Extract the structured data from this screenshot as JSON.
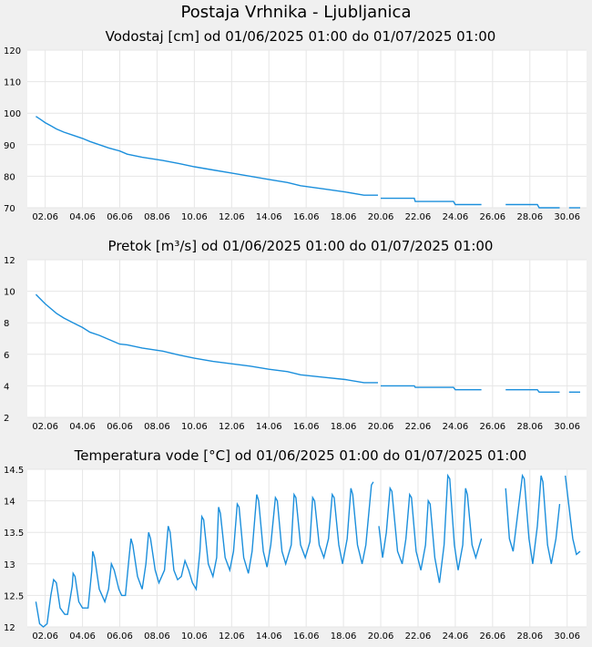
{
  "page": {
    "title": "Postaja Vrhnika - Ljubljanica"
  },
  "chart_data": [
    {
      "type": "line",
      "title": "Vodostaj [cm] od 01/06/2025 01:00 do 01/07/2025 01:00",
      "ylim": [
        70,
        120
      ],
      "yticks": [
        "120",
        "110",
        "100",
        "90",
        "80",
        "70"
      ],
      "xlim": [
        1.04,
        31.04
      ],
      "xticks": [
        "02.06",
        "04.06",
        "06.06",
        "08.06",
        "10.06",
        "12.06",
        "14.06",
        "16.06",
        "18.06",
        "20.06",
        "22.06",
        "24.06",
        "26.06",
        "28.06",
        "30.06"
      ],
      "grid": true,
      "color": "#1b8fdc",
      "series": [
        {
          "points": [
            [
              1.5,
              99
            ],
            [
              1.75,
              98
            ],
            [
              2.0,
              97
            ],
            [
              2.3,
              96
            ],
            [
              2.6,
              95
            ],
            [
              3.0,
              94
            ],
            [
              3.5,
              93
            ],
            [
              4.0,
              92
            ],
            [
              4.4,
              91
            ],
            [
              4.9,
              90
            ],
            [
              5.4,
              89
            ],
            [
              6.0,
              88
            ],
            [
              6.4,
              87
            ],
            [
              7.2,
              86
            ],
            [
              8.3,
              85
            ],
            [
              9.2,
              84
            ],
            [
              10.0,
              83
            ],
            [
              11.0,
              82
            ],
            [
              12.0,
              81
            ],
            [
              13.0,
              80
            ],
            [
              14.0,
              79
            ],
            [
              15.0,
              78
            ],
            [
              15.7,
              77
            ],
            [
              16.9,
              76
            ],
            [
              18.1,
              75
            ],
            [
              19.1,
              74
            ],
            [
              19.85,
              74
            ]
          ]
        },
        {
          "points": [
            [
              20.0,
              73
            ],
            [
              21.8,
              73
            ],
            [
              21.85,
              72
            ],
            [
              23.9,
              72
            ],
            [
              24.0,
              71
            ],
            [
              25.4,
              71
            ]
          ]
        },
        {
          "points": [
            [
              26.7,
              71
            ],
            [
              28.4,
              71
            ],
            [
              28.5,
              70
            ],
            [
              29.6,
              70
            ]
          ]
        },
        {
          "points": [
            [
              30.1,
              70
            ],
            [
              30.7,
              70
            ]
          ]
        }
      ]
    },
    {
      "type": "line",
      "title": "Pretok [m³/s] od 01/06/2025 01:00 do 01/07/2025 01:00",
      "ylim": [
        2,
        12
      ],
      "yticks": [
        "12",
        "10",
        "8",
        "6",
        "4",
        "2"
      ],
      "xlim": [
        1.04,
        31.04
      ],
      "xticks": [
        "02.06",
        "04.06",
        "06.06",
        "08.06",
        "10.06",
        "12.06",
        "14.06",
        "16.06",
        "18.06",
        "20.06",
        "22.06",
        "24.06",
        "26.06",
        "28.06",
        "30.06"
      ],
      "grid": true,
      "color": "#1b8fdc",
      "series": [
        {
          "points": [
            [
              1.5,
              9.8
            ],
            [
              1.75,
              9.5
            ],
            [
              2.0,
              9.2
            ],
            [
              2.3,
              8.9
            ],
            [
              2.6,
              8.6
            ],
            [
              3.0,
              8.3
            ],
            [
              3.5,
              8.0
            ],
            [
              4.0,
              7.7
            ],
            [
              4.4,
              7.4
            ],
            [
              4.9,
              7.2
            ],
            [
              5.4,
              6.95
            ],
            [
              6.0,
              6.65
            ],
            [
              6.4,
              6.6
            ],
            [
              7.2,
              6.4
            ],
            [
              8.3,
              6.2
            ],
            [
              9.2,
              5.95
            ],
            [
              10.0,
              5.75
            ],
            [
              11.0,
              5.55
            ],
            [
              12.0,
              5.4
            ],
            [
              13.0,
              5.25
            ],
            [
              14.0,
              5.05
            ],
            [
              15.0,
              4.9
            ],
            [
              15.7,
              4.7
            ],
            [
              16.9,
              4.55
            ],
            [
              18.1,
              4.4
            ],
            [
              19.1,
              4.2
            ],
            [
              19.85,
              4.2
            ]
          ]
        },
        {
          "points": [
            [
              20.0,
              4.0
            ],
            [
              21.8,
              4.0
            ],
            [
              21.85,
              3.9
            ],
            [
              23.9,
              3.9
            ],
            [
              24.0,
              3.75
            ],
            [
              25.4,
              3.75
            ]
          ]
        },
        {
          "points": [
            [
              26.7,
              3.75
            ],
            [
              28.4,
              3.75
            ],
            [
              28.5,
              3.6
            ],
            [
              29.6,
              3.6
            ]
          ]
        },
        {
          "points": [
            [
              30.1,
              3.6
            ],
            [
              30.7,
              3.6
            ]
          ]
        }
      ]
    },
    {
      "type": "line",
      "title": "Temperatura vode [°C] od 01/06/2025 01:00 do 01/07/2025 01:00",
      "ylim": [
        12,
        14.5
      ],
      "yticks": [
        "14.5",
        "14",
        "13.5",
        "13",
        "12.5",
        "12"
      ],
      "xlim": [
        1.04,
        31.04
      ],
      "xticks": [
        "02.06",
        "04.06",
        "06.06",
        "08.06",
        "10.06",
        "12.06",
        "14.06",
        "16.06",
        "18.06",
        "20.06",
        "22.06",
        "24.06",
        "26.06",
        "28.06",
        "30.06"
      ],
      "grid": true,
      "color": "#1b8fdc",
      "series": [
        {
          "points": [
            [
              1.5,
              12.4
            ],
            [
              1.7,
              12.05
            ],
            [
              1.9,
              12.0
            ],
            [
              2.1,
              12.05
            ],
            [
              2.3,
              12.5
            ],
            [
              2.45,
              12.75
            ],
            [
              2.6,
              12.7
            ],
            [
              2.8,
              12.3
            ],
            [
              3.05,
              12.2
            ],
            [
              3.2,
              12.2
            ],
            [
              3.45,
              12.65
            ],
            [
              3.5,
              12.85
            ],
            [
              3.6,
              12.8
            ],
            [
              3.8,
              12.4
            ],
            [
              4.0,
              12.3
            ],
            [
              4.3,
              12.3
            ],
            [
              4.5,
              12.9
            ],
            [
              4.55,
              13.2
            ],
            [
              4.65,
              13.1
            ],
            [
              4.9,
              12.6
            ],
            [
              5.2,
              12.4
            ],
            [
              5.4,
              12.6
            ],
            [
              5.55,
              13.0
            ],
            [
              5.7,
              12.9
            ],
            [
              5.95,
              12.6
            ],
            [
              6.1,
              12.5
            ],
            [
              6.3,
              12.5
            ],
            [
              6.5,
              13.1
            ],
            [
              6.6,
              13.4
            ],
            [
              6.7,
              13.3
            ],
            [
              6.95,
              12.8
            ],
            [
              7.2,
              12.6
            ],
            [
              7.4,
              13.0
            ],
            [
              7.55,
              13.5
            ],
            [
              7.65,
              13.4
            ],
            [
              7.9,
              12.9
            ],
            [
              8.1,
              12.7
            ],
            [
              8.4,
              12.9
            ],
            [
              8.6,
              13.6
            ],
            [
              8.7,
              13.5
            ],
            [
              8.9,
              12.9
            ],
            [
              9.1,
              12.75
            ],
            [
              9.3,
              12.8
            ],
            [
              9.5,
              13.05
            ],
            [
              9.7,
              12.9
            ],
            [
              9.9,
              12.7
            ],
            [
              10.1,
              12.6
            ],
            [
              10.3,
              13.2
            ],
            [
              10.4,
              13.75
            ],
            [
              10.5,
              13.7
            ],
            [
              10.75,
              13.0
            ],
            [
              11.0,
              12.8
            ],
            [
              11.2,
              13.1
            ],
            [
              11.3,
              13.9
            ],
            [
              11.4,
              13.8
            ],
            [
              11.65,
              13.1
            ],
            [
              11.9,
              12.9
            ],
            [
              12.1,
              13.2
            ],
            [
              12.3,
              13.95
            ],
            [
              12.4,
              13.9
            ],
            [
              12.65,
              13.1
            ],
            [
              12.9,
              12.85
            ],
            [
              13.1,
              13.2
            ],
            [
              13.35,
              14.1
            ],
            [
              13.45,
              14.0
            ],
            [
              13.7,
              13.2
            ],
            [
              13.9,
              12.95
            ],
            [
              14.1,
              13.3
            ],
            [
              14.35,
              14.05
            ],
            [
              14.45,
              14.0
            ],
            [
              14.7,
              13.2
            ],
            [
              14.9,
              13.0
            ],
            [
              15.2,
              13.3
            ],
            [
              15.35,
              14.1
            ],
            [
              15.45,
              14.05
            ],
            [
              15.7,
              13.3
            ],
            [
              15.95,
              13.1
            ],
            [
              16.2,
              13.35
            ],
            [
              16.35,
              14.05
            ],
            [
              16.45,
              14.0
            ],
            [
              16.7,
              13.3
            ],
            [
              16.95,
              13.1
            ],
            [
              17.2,
              13.4
            ],
            [
              17.4,
              14.1
            ],
            [
              17.5,
              14.05
            ],
            [
              17.75,
              13.3
            ],
            [
              17.95,
              13.0
            ],
            [
              18.2,
              13.4
            ],
            [
              18.4,
              14.2
            ],
            [
              18.5,
              14.1
            ],
            [
              18.75,
              13.3
            ],
            [
              19.0,
              13.0
            ],
            [
              19.2,
              13.3
            ],
            [
              19.5,
              14.25
            ],
            [
              19.6,
              14.3
            ]
          ]
        },
        {
          "points": [
            [
              19.9,
              13.6
            ],
            [
              20.1,
              13.1
            ],
            [
              20.3,
              13.5
            ],
            [
              20.5,
              14.2
            ],
            [
              20.6,
              14.15
            ],
            [
              20.9,
              13.2
            ],
            [
              21.15,
              13.0
            ],
            [
              21.35,
              13.4
            ],
            [
              21.55,
              14.1
            ],
            [
              21.65,
              14.05
            ],
            [
              21.9,
              13.2
            ],
            [
              22.15,
              12.9
            ],
            [
              22.4,
              13.3
            ],
            [
              22.55,
              14.0
            ],
            [
              22.65,
              13.95
            ],
            [
              22.9,
              13.1
            ],
            [
              23.15,
              12.7
            ],
            [
              23.4,
              13.3
            ],
            [
              23.6,
              14.4
            ],
            [
              23.7,
              14.35
            ],
            [
              23.95,
              13.3
            ],
            [
              24.15,
              12.9
            ],
            [
              24.4,
              13.3
            ],
            [
              24.55,
              14.2
            ],
            [
              24.65,
              14.1
            ],
            [
              24.9,
              13.3
            ],
            [
              25.1,
              13.1
            ],
            [
              25.3,
              13.3
            ],
            [
              25.4,
              13.4
            ]
          ]
        },
        {
          "points": [
            [
              26.7,
              14.2
            ],
            [
              26.9,
              13.4
            ],
            [
              27.1,
              13.2
            ],
            [
              27.35,
              13.8
            ],
            [
              27.6,
              14.4
            ],
            [
              27.7,
              14.35
            ],
            [
              27.95,
              13.4
            ],
            [
              28.15,
              13.0
            ],
            [
              28.4,
              13.6
            ],
            [
              28.6,
              14.4
            ],
            [
              28.7,
              14.3
            ],
            [
              28.95,
              13.3
            ],
            [
              29.15,
              13.0
            ],
            [
              29.4,
              13.4
            ],
            [
              29.6,
              13.95
            ]
          ]
        },
        {
          "points": [
            [
              29.9,
              14.4
            ],
            [
              30.1,
              13.9
            ],
            [
              30.3,
              13.4
            ],
            [
              30.5,
              13.15
            ],
            [
              30.7,
              13.2
            ]
          ]
        }
      ]
    }
  ]
}
